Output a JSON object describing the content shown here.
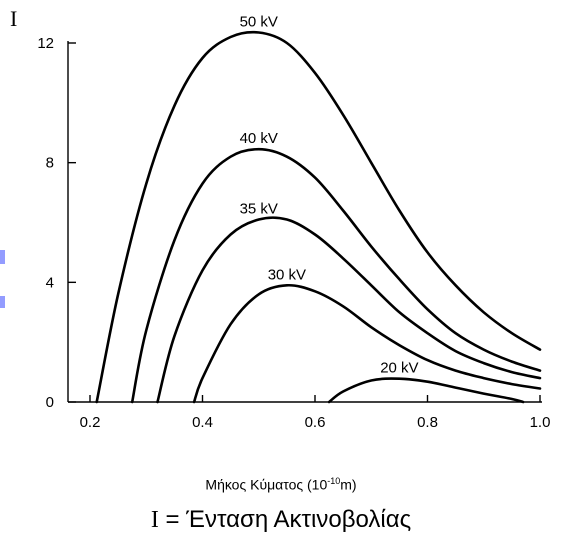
{
  "chart_data": {
    "type": "line",
    "y_axis_symbol": "I",
    "xlabel_prefix": "Μήκος Κύματος (10",
    "xlabel_exponent": "-10",
    "xlabel_suffix": "m)",
    "caption_symbol": "I",
    "caption_text": " = Ένταση Ακτινοβολίας",
    "xlim": [
      0.2,
      1.0
    ],
    "ylim": [
      0,
      12
    ],
    "x_ticks": [
      0.2,
      0.4,
      0.6,
      0.8,
      1.0
    ],
    "x_tick_labels": [
      "0.2",
      "0.4",
      "0.6",
      "0.8",
      "1.0"
    ],
    "y_ticks": [
      0,
      4,
      8,
      12
    ],
    "y_tick_labels": [
      "0",
      "4",
      "8",
      "12"
    ],
    "grid": false,
    "line_color": "#000000",
    "series": [
      {
        "name": "50 kV",
        "x": [
          0.212,
          0.25,
          0.3,
          0.35,
          0.4,
          0.45,
          0.5,
          0.55,
          0.6,
          0.65,
          0.7,
          0.75,
          0.8,
          0.85,
          0.9,
          0.95,
          1.0
        ],
        "y": [
          0,
          3.6,
          7.3,
          9.9,
          11.5,
          12.2,
          12.35,
          12.0,
          11.0,
          9.6,
          8.0,
          6.4,
          5.0,
          3.9,
          3.0,
          2.3,
          1.75
        ]
      },
      {
        "name": "40 kV",
        "x": [
          0.275,
          0.3,
          0.35,
          0.4,
          0.45,
          0.5,
          0.55,
          0.6,
          0.65,
          0.7,
          0.75,
          0.8,
          0.85,
          0.9,
          0.95,
          1.0
        ],
        "y": [
          0,
          2.4,
          5.4,
          7.3,
          8.2,
          8.45,
          8.2,
          7.5,
          6.4,
          5.2,
          4.1,
          3.1,
          2.3,
          1.75,
          1.35,
          1.05
        ]
      },
      {
        "name": "35 kV",
        "x": [
          0.32,
          0.35,
          0.4,
          0.45,
          0.5,
          0.55,
          0.6,
          0.65,
          0.7,
          0.75,
          0.8,
          0.85,
          0.9,
          0.95,
          1.0
        ],
        "y": [
          0,
          2.2,
          4.4,
          5.6,
          6.1,
          6.1,
          5.6,
          4.8,
          3.9,
          3.0,
          2.3,
          1.7,
          1.3,
          1.0,
          0.8
        ]
      },
      {
        "name": "30 kV",
        "x": [
          0.385,
          0.4,
          0.45,
          0.5,
          0.55,
          0.6,
          0.65,
          0.7,
          0.75,
          0.8,
          0.85,
          0.9,
          0.95,
          1.0
        ],
        "y": [
          0,
          0.8,
          2.6,
          3.6,
          3.9,
          3.7,
          3.2,
          2.5,
          1.9,
          1.4,
          1.05,
          0.8,
          0.6,
          0.45
        ]
      },
      {
        "name": "20 kV",
        "x": [
          0.625,
          0.65,
          0.7,
          0.75,
          0.8,
          0.85,
          0.9,
          0.95,
          0.97
        ],
        "y": [
          0,
          0.35,
          0.72,
          0.78,
          0.68,
          0.48,
          0.28,
          0.1,
          0
        ]
      }
    ]
  }
}
